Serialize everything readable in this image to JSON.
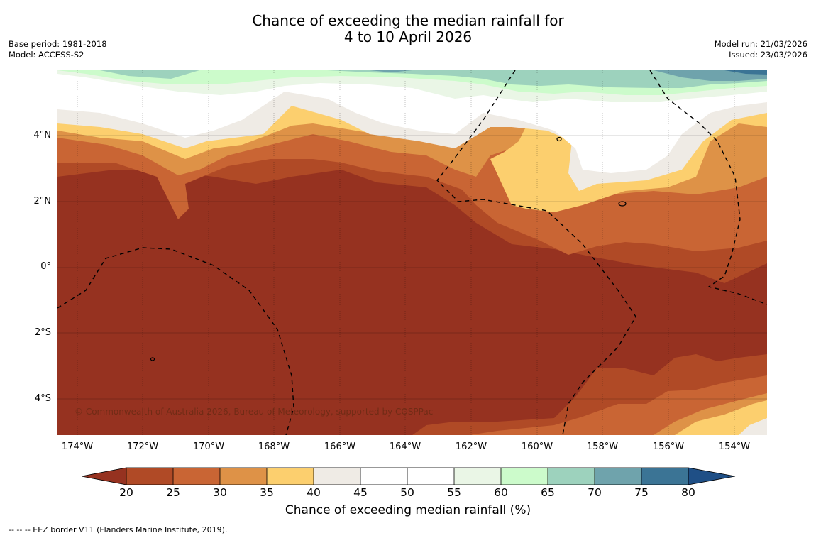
{
  "header": {
    "title_line1": "Chance of exceeding the median rainfall for",
    "title_line2": "4 to 10 April 2026",
    "base_period": "Base period: 1981-2018",
    "model": "Model: ACCESS-S2",
    "model_run": "Model run: 21/03/2026",
    "issued": "Issued: 23/03/2026"
  },
  "map": {
    "lat_labels": [
      "4°N",
      "2°N",
      "0°",
      "2°S",
      "4°S"
    ],
    "lon_labels": [
      "174°W",
      "172°W",
      "170°W",
      "168°W",
      "166°W",
      "164°W",
      "162°W",
      "160°W",
      "158°W",
      "156°W",
      "154°W"
    ],
    "copyright": "© Commonwealth of Australia 2026, Bureau of Meteorology, supported by COSPPac",
    "colors": {
      "lt20": "#963220",
      "c20_25": "#b04a26",
      "c25_30": "#c96534",
      "c30_35": "#de9247",
      "c35_40": "#fccf6e",
      "c40_45": "#efebe5",
      "c45_55": "#ffffff",
      "c55_60": "#eaf6e6",
      "c60_65": "#ccfbcb",
      "c65_70": "#9dd2bd",
      "c70_75": "#6fa3ac",
      "c75_80": "#3b7495",
      "gt80": "#1f4f86"
    }
  },
  "colorbar": {
    "ticks": [
      "20",
      "25",
      "30",
      "35",
      "40",
      "45",
      "50",
      "55",
      "60",
      "65",
      "70",
      "75",
      "80"
    ],
    "colors": [
      "#963220",
      "#b04a26",
      "#c96534",
      "#de9247",
      "#fccf6e",
      "#efebe5",
      "#ffffff",
      "#ffffff",
      "#eaf6e6",
      "#ccfbcb",
      "#9dd2bd",
      "#6fa3ac",
      "#3b7495",
      "#1f4f86"
    ],
    "label": "Chance of exceeding median rainfall (%)"
  },
  "footnote": "--  --  -- EEZ border V11 (Flanders Marine Institute, 2019)."
}
